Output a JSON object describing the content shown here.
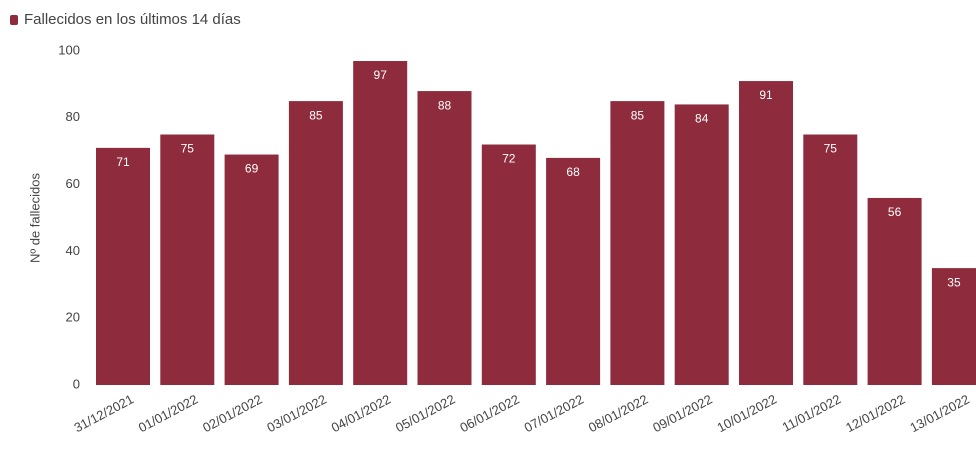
{
  "chart_data": {
    "type": "bar",
    "y_label": "Nº de fallecidos",
    "categories": [
      "31/12/2021",
      "01/01/2022",
      "02/01/2022",
      "03/01/2022",
      "04/01/2022",
      "05/01/2022",
      "06/01/2022",
      "07/01/2022",
      "08/01/2022",
      "09/01/2022",
      "10/01/2022",
      "11/01/2022",
      "12/01/2022",
      "13/01/2022"
    ],
    "series": [
      {
        "name": "Fallecidos en los últimos 14 días",
        "color": "#8e2b3c",
        "values": [
          71,
          75,
          69,
          85,
          97,
          88,
          72,
          68,
          85,
          84,
          91,
          75,
          56,
          35
        ]
      }
    ],
    "ylim": [
      0,
      100
    ],
    "yticks": [
      0,
      20,
      40,
      60,
      80,
      100
    ],
    "grid": false
  }
}
